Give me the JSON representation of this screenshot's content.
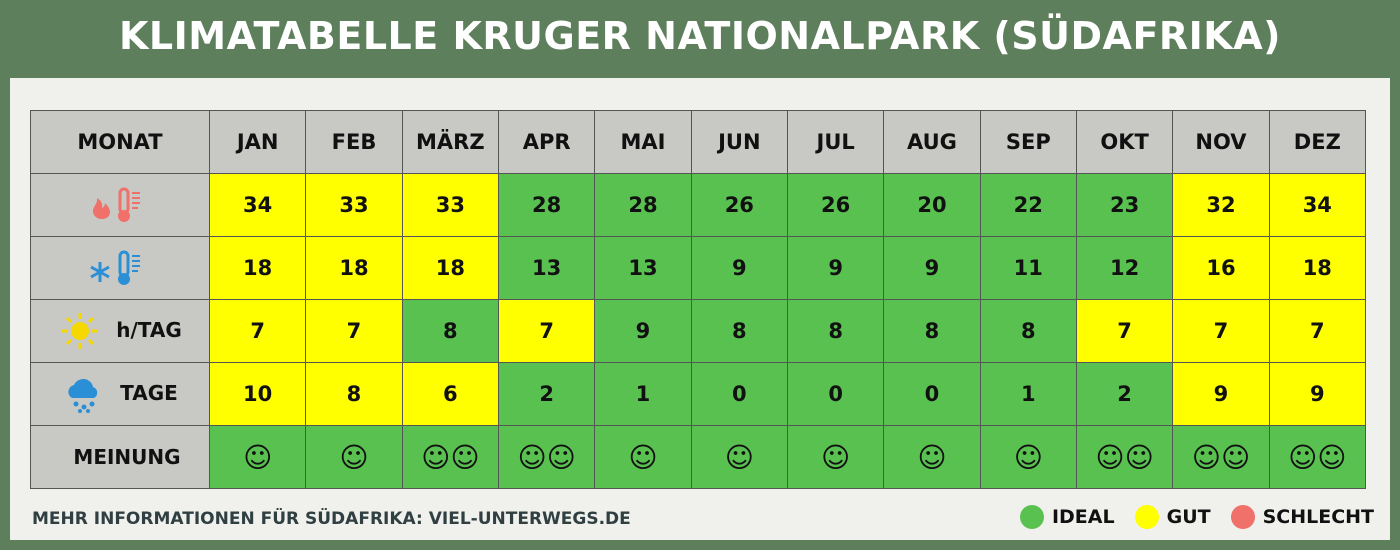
{
  "header": {
    "title": "KLIMATABELLE KRUGER NATIONALPARK (SÜDAFRIKA)"
  },
  "table": {
    "corner": "MONAT",
    "months": [
      "JAN",
      "FEB",
      "MÄRZ",
      "APR",
      "MAI",
      "JUN",
      "JUL",
      "AUG",
      "SEP",
      "OKT",
      "NOV",
      "DEZ"
    ],
    "rows": [
      {
        "icon": "hot",
        "cells": [
          34,
          33,
          33,
          28,
          28,
          26,
          26,
          20,
          22,
          23,
          32,
          34
        ],
        "colors": [
          "#ffff00",
          "#ffff00",
          "#ffff00",
          "#59c150",
          "#59c150",
          "#59c150",
          "#59c150",
          "#59c150",
          "#59c150",
          "#59c150",
          "#ffff00",
          "#ffff00"
        ]
      },
      {
        "icon": "cold",
        "cells": [
          18,
          18,
          18,
          13,
          13,
          9,
          9,
          9,
          11,
          12,
          16,
          18
        ],
        "colors": [
          "#ffff00",
          "#ffff00",
          "#ffff00",
          "#59c150",
          "#59c150",
          "#59c150",
          "#59c150",
          "#59c150",
          "#59c150",
          "#59c150",
          "#ffff00",
          "#ffff00"
        ]
      },
      {
        "icon": "sun",
        "label": "h/TAG",
        "cells": [
          7,
          7,
          8,
          7,
          9,
          8,
          8,
          8,
          8,
          7,
          7,
          7
        ],
        "colors": [
          "#ffff00",
          "#ffff00",
          "#59c150",
          "#ffff00",
          "#59c150",
          "#59c150",
          "#59c150",
          "#59c150",
          "#59c150",
          "#ffff00",
          "#ffff00",
          "#ffff00"
        ]
      },
      {
        "icon": "rain",
        "label": "TAGE",
        "cells": [
          10,
          8,
          6,
          2,
          1,
          0,
          0,
          0,
          1,
          2,
          9,
          9
        ],
        "colors": [
          "#ffff00",
          "#ffff00",
          "#ffff00",
          "#59c150",
          "#59c150",
          "#59c150",
          "#59c150",
          "#59c150",
          "#59c150",
          "#59c150",
          "#ffff00",
          "#ffff00"
        ]
      },
      {
        "label": "MEINUNG",
        "cells": [
          "☺",
          "☺",
          "☺☺",
          "☺☺",
          "☺",
          "☺",
          "☺",
          "☺",
          "☺",
          "☺☺",
          "☺☺",
          "☺☺"
        ],
        "colors": [
          "#59c150",
          "#59c150",
          "#59c150",
          "#59c150",
          "#59c150",
          "#59c150",
          "#59c150",
          "#59c150",
          "#59c150",
          "#59c150",
          "#59c150",
          "#59c150"
        ]
      }
    ]
  },
  "footer": {
    "text": "MEHR INFORMATIONEN FÜR SÜDAFRIKA: VIEL-UNTERWEGS.DE"
  },
  "legend": [
    {
      "label": "IDEAL",
      "color": "#59c150"
    },
    {
      "label": "GUT",
      "color": "#ffff00"
    },
    {
      "label": "SCHLECHT",
      "color": "#f0706a"
    }
  ]
}
